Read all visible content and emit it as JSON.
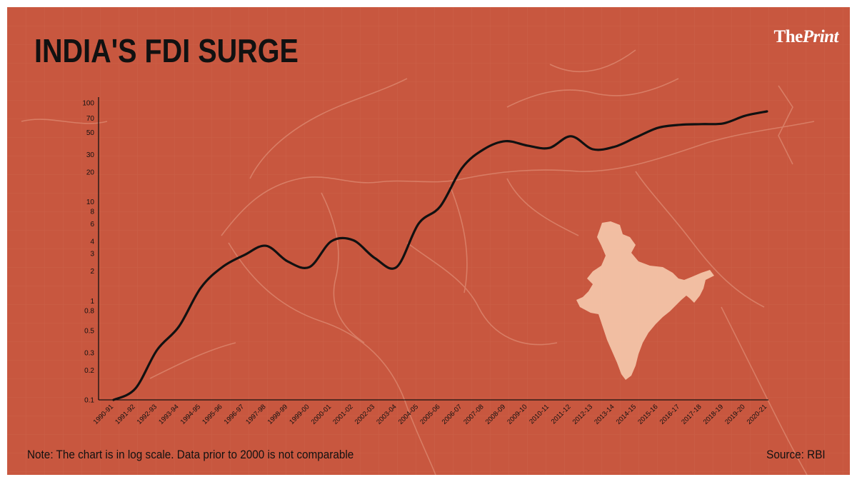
{
  "title": "INDIA'S FDI SURGE",
  "brand": {
    "part1": "The",
    "part2": "Print"
  },
  "note": "Note: The chart is in log scale. Data prior to 2000 is not comparable",
  "source": "Source: RBI",
  "colors": {
    "background": "#c8573f",
    "line": "#111111",
    "map_highlight": "#f3c4a8"
  },
  "chart_data": {
    "type": "line",
    "title": "INDIA'S FDI SURGE",
    "xlabel": "",
    "ylabel": "",
    "yscale": "log",
    "ylim": [
      0.1,
      100
    ],
    "grid": false,
    "legend": "none",
    "y_ticks": [
      "100",
      "70",
      "50",
      "30",
      "20",
      "10",
      "8",
      "6",
      "4",
      "3",
      "2",
      "1",
      "0.8",
      "0.5",
      "0.3",
      "0.2",
      "0.1"
    ],
    "categories": [
      "1990-91",
      "1991-92",
      "1992-93",
      "1993-94",
      "1994-95",
      "1995-96",
      "1996-97",
      "1997-98",
      "1998-99",
      "1999-00",
      "2000-01",
      "2001-02",
      "2002-03",
      "2003-04",
      "2004-05",
      "2005-06",
      "2006-07",
      "2007-08",
      "2008-09",
      "2009-10",
      "2010-11",
      "2011-12",
      "2012-13",
      "2013-14",
      "2014-15",
      "2015-16",
      "2016-17",
      "2017-18",
      "2018-19",
      "2019-20",
      "2020-21"
    ],
    "series": [
      {
        "values": [
          0.1,
          0.13,
          0.32,
          0.55,
          1.35,
          2.2,
          2.9,
          3.6,
          2.5,
          2.2,
          4.0,
          4.1,
          2.7,
          2.2,
          6.0,
          9.0,
          22.0,
          34.0,
          41.0,
          37.0,
          35.0,
          46.0,
          34.0,
          36.0,
          45.0,
          56.0,
          60.0,
          61.0,
          62.0,
          74.0,
          82.0
        ]
      }
    ]
  }
}
